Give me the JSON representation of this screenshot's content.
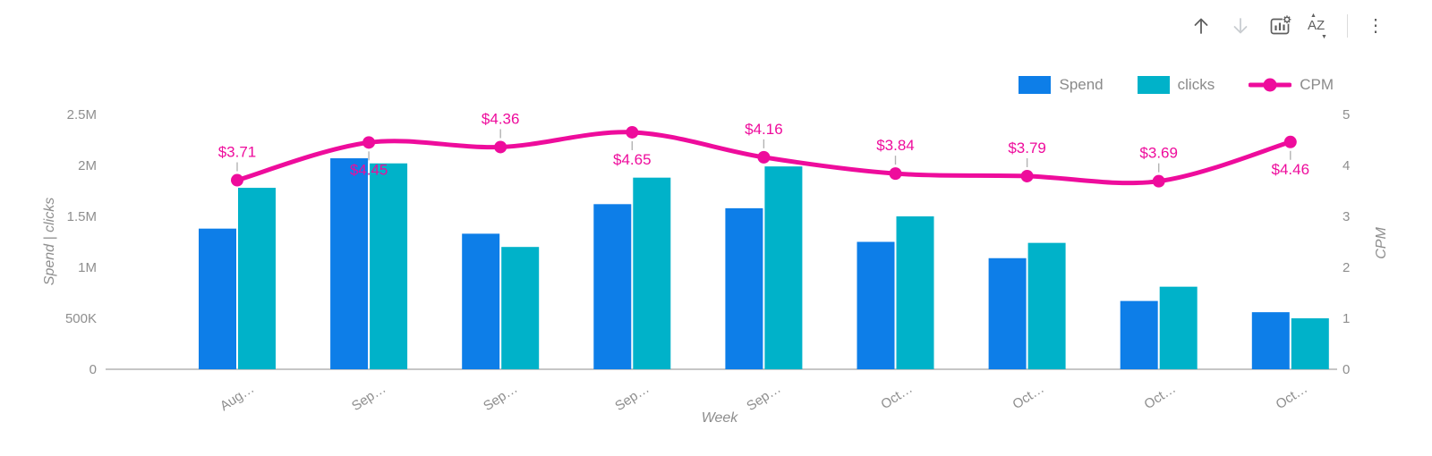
{
  "toolbar": {
    "icons": [
      "up-arrow",
      "down-arrow",
      "chart-settings",
      "sort-az",
      "more-options"
    ]
  },
  "legend": {
    "items": [
      {
        "label": "Spend",
        "color": "#0d7ee8",
        "symbol": "square"
      },
      {
        "label": "clicks",
        "color": "#00b2c9",
        "symbol": "square"
      },
      {
        "label": "CPM",
        "color": "#ee0c9c",
        "symbol": "line-dot"
      }
    ]
  },
  "chart_data": {
    "type": "bar",
    "subtype": "clustered-column-with-line",
    "categories": [
      "Aug…",
      "Sep…",
      "Sep…",
      "Sep…",
      "Sep…",
      "Oct…",
      "Oct…",
      "Oct…",
      "Oct…"
    ],
    "xlabel": "Week",
    "y_left": {
      "label": "Spend | clicks",
      "tick_values": [
        0,
        500000,
        1000000,
        1500000,
        2000000,
        2500000
      ],
      "tick_labels": [
        "0",
        "500K",
        "1M",
        "1.5M",
        "2M",
        "2.5M"
      ],
      "ylim": [
        0,
        2500000
      ]
    },
    "y_right": {
      "label": "CPM",
      "tick_values": [
        0,
        1,
        2,
        3,
        4,
        5
      ],
      "tick_labels": [
        "0",
        "1",
        "2",
        "3",
        "4",
        "5"
      ],
      "ylim": [
        0,
        5
      ]
    },
    "series": [
      {
        "name": "Spend",
        "type": "bar",
        "axis": "left",
        "color": "#0d7ee8",
        "values": [
          1380000,
          2070000,
          1330000,
          1620000,
          1580000,
          1250000,
          1090000,
          670000,
          560000
        ]
      },
      {
        "name": "clicks",
        "type": "bar",
        "axis": "left",
        "color": "#00b2c9",
        "values": [
          1780000,
          2020000,
          1200000,
          1880000,
          1990000,
          1500000,
          1240000,
          810000,
          500000
        ]
      },
      {
        "name": "CPM",
        "type": "line",
        "axis": "right",
        "color": "#ee0c9c",
        "values": [
          3.71,
          4.45,
          4.36,
          4.65,
          4.16,
          3.84,
          3.79,
          3.69,
          4.46
        ],
        "data_labels": [
          "$3.71",
          "$4.45",
          "$4.36",
          "$4.65",
          "$4.16",
          "$3.84",
          "$3.79",
          "$3.69",
          "$4.46"
        ],
        "label_positions": [
          "above",
          "below",
          "above",
          "below",
          "above",
          "above",
          "above",
          "above",
          "below"
        ]
      }
    ],
    "grid": false,
    "legend_position": "top-right",
    "styles": {
      "axis_text_color": "#8e8e8e",
      "axis_line_color": "#b3b3b3",
      "data_label_color": "#ee0c9c"
    }
  }
}
